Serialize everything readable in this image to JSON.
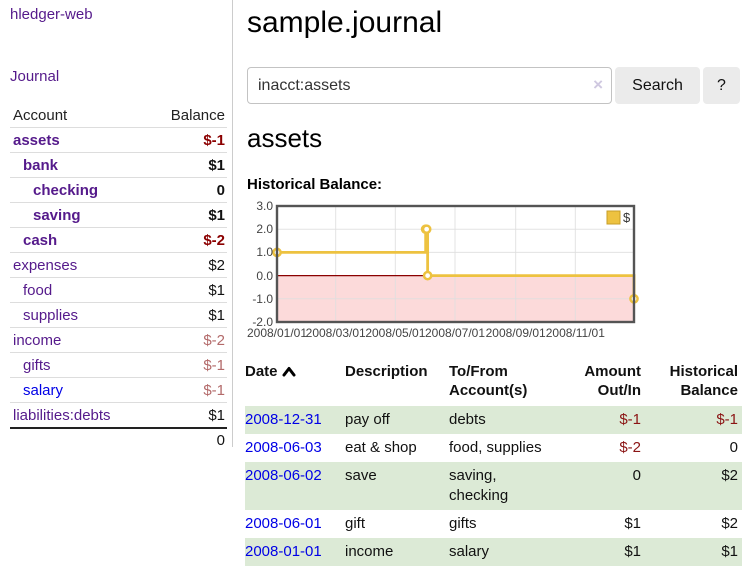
{
  "app": {
    "title": "hledger-web",
    "nav_journal": "Journal"
  },
  "sidebar": {
    "header": {
      "account": "Account",
      "balance": "Balance"
    },
    "accounts": [
      {
        "name": "assets",
        "indent": 1,
        "bold": true,
        "link_color": "purple",
        "balance": "$-1",
        "balance_class": "neg"
      },
      {
        "name": "bank",
        "indent": 2,
        "bold": true,
        "link_color": "purple",
        "balance": "$1",
        "balance_class": "pos"
      },
      {
        "name": "checking",
        "indent": 3,
        "bold": true,
        "link_color": "purple",
        "balance": "0",
        "balance_class": "pos"
      },
      {
        "name": "saving",
        "indent": 3,
        "bold": true,
        "link_color": "purple",
        "balance": "$1",
        "balance_class": "pos"
      },
      {
        "name": "cash",
        "indent": 2,
        "bold": true,
        "link_color": "purple",
        "balance": "$-2",
        "balance_class": "neg"
      },
      {
        "name": "expenses",
        "indent": 1,
        "bold": false,
        "link_color": "purple",
        "balance": "$2",
        "balance_class": "pos"
      },
      {
        "name": "food",
        "indent": 2,
        "bold": false,
        "link_color": "purple",
        "balance": "$1",
        "balance_class": "pos"
      },
      {
        "name": "supplies",
        "indent": 2,
        "bold": false,
        "link_color": "purple",
        "balance": "$1",
        "balance_class": "pos"
      },
      {
        "name": "income",
        "indent": 1,
        "bold": false,
        "link_color": "purple",
        "balance": "$-2",
        "balance_class": "neg-weak"
      },
      {
        "name": "gifts",
        "indent": 2,
        "bold": false,
        "link_color": "purple",
        "balance": "$-1",
        "balance_class": "neg-weak"
      },
      {
        "name": "salary",
        "indent": 2,
        "bold": false,
        "link_color": "blue",
        "balance": "$-1",
        "balance_class": "neg-weak"
      },
      {
        "name": "liabilities:debts",
        "indent": 1,
        "bold": false,
        "link_color": "purple",
        "balance": "$1",
        "balance_class": "pos"
      }
    ],
    "total": "0"
  },
  "header": {
    "title": "sample.journal"
  },
  "search": {
    "value": "inacct:assets",
    "clear_icon": "×",
    "button_label": "Search",
    "help_label": "?"
  },
  "account_page": {
    "heading": "assets"
  },
  "chart_data": {
    "type": "line",
    "step": true,
    "title": "Historical Balance:",
    "series": [
      {
        "name": "$",
        "color": "#edc240",
        "points": [
          [
            "2008-01-01",
            1
          ],
          [
            "2008-06-01",
            2
          ],
          [
            "2008-06-02",
            2
          ],
          [
            "2008-06-03",
            0
          ],
          [
            "2008-12-31",
            -1
          ]
        ]
      }
    ],
    "x_range": [
      "2008-01-01",
      "2008-12-31"
    ],
    "x_ticks": [
      {
        "date": "2008-01-01",
        "label": "2008/01/01"
      },
      {
        "date": "2008-03-01",
        "label": "2008/03/01"
      },
      {
        "date": "2008-05-01",
        "label": "2008/05/01"
      },
      {
        "date": "2008-07-01",
        "label": "2008/07/01"
      },
      {
        "date": "2008-09-01",
        "label": "2008/09/01"
      },
      {
        "date": "2008-11-01",
        "label": "2008/11/01"
      }
    ],
    "y_ticks": [
      {
        "v": 3,
        "label": "3.0"
      },
      {
        "v": 2,
        "label": "2.0"
      },
      {
        "v": 1,
        "label": "1.0"
      },
      {
        "v": 0,
        "label": "0.0"
      },
      {
        "v": -1,
        "label": "-1.0"
      },
      {
        "v": -2,
        "label": "-2.0"
      }
    ],
    "ylim": [
      -2,
      3
    ],
    "grid": true,
    "legend": {
      "label": "$",
      "position": "top-right",
      "swatch_color": "#edc240"
    },
    "negative_region_color": "#fcdada",
    "zero_line_color": "#8b0000",
    "border_color": "#545454",
    "grid_color": "#dedede"
  },
  "register": {
    "columns": [
      {
        "label": "Date",
        "sort": "asc"
      },
      {
        "label": "Description"
      },
      {
        "label": "To/From Account(s)"
      },
      {
        "label": "Amount Out/In",
        "align": "right"
      },
      {
        "label": "Historical Balance",
        "align": "right"
      }
    ],
    "rows": [
      {
        "date": "2008-12-31",
        "description": "pay off",
        "accounts": "debts",
        "amount": "$-1",
        "amount_negative": true,
        "balance": "$-1",
        "balance_negative": true
      },
      {
        "date": "2008-06-03",
        "description": "eat & shop",
        "accounts": "food, supplies",
        "amount": "$-2",
        "amount_negative": true,
        "balance": "0",
        "balance_negative": false
      },
      {
        "date": "2008-06-02",
        "description": "save",
        "accounts": "saving, checking",
        "amount": "0",
        "amount_negative": false,
        "balance": "$2",
        "balance_negative": false
      },
      {
        "date": "2008-06-01",
        "description": "gift",
        "accounts": "gifts",
        "amount": "$1",
        "amount_negative": false,
        "balance": "$2",
        "balance_negative": false
      },
      {
        "date": "2008-01-01",
        "description": "income",
        "accounts": "salary",
        "amount": "$1",
        "amount_negative": false,
        "balance": "$1",
        "balance_negative": false
      }
    ]
  }
}
